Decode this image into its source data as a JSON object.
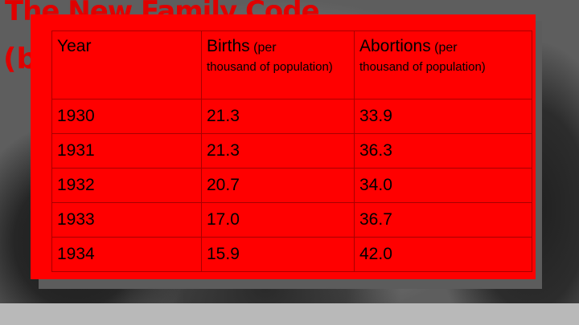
{
  "slide": {
    "title": "The New Family Code",
    "subtitle": "(b"
  },
  "table": {
    "headers": [
      {
        "main": "Year",
        "suffix": "",
        "sub": ""
      },
      {
        "main": "Births",
        "suffix": "(per",
        "sub": "thousand of population)"
      },
      {
        "main": "Abortions",
        "suffix": "(per",
        "sub": "thousand of population)"
      }
    ],
    "rows": [
      [
        "1930",
        "21.3",
        "33.9"
      ],
      [
        "1931",
        "21.3",
        "36.3"
      ],
      [
        "1932",
        "20.7",
        "34.0"
      ],
      [
        "1933",
        "17.0",
        "36.7"
      ],
      [
        "1934",
        "15.9",
        "42.0"
      ]
    ]
  },
  "colors": {
    "table_background": "#ff0000",
    "title": "#e00000"
  }
}
